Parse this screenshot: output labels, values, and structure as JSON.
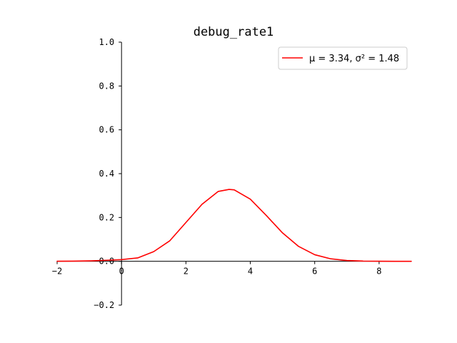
{
  "chart_data": {
    "type": "line",
    "title": "debug_rate1",
    "xlabel": "",
    "ylabel": "",
    "xlim": [
      -2,
      9
    ],
    "ylim": [
      -0.2,
      1.0
    ],
    "x_ticks": [
      -2,
      0,
      2,
      4,
      6,
      8
    ],
    "x_tick_labels": [
      "−2",
      "0",
      "2",
      "4",
      "6",
      "8"
    ],
    "y_ticks": [
      -0.2,
      0.0,
      0.2,
      0.4,
      0.6,
      0.8,
      1.0
    ],
    "y_tick_labels": [
      "−0.2",
      "0.0",
      "0.2",
      "0.4",
      "0.6",
      "0.8",
      "1.0"
    ],
    "grid": false,
    "legend_position": "top-right",
    "series": [
      {
        "name": "μ = 3.34, σ² = 1.48",
        "color": "#ff0000",
        "x": [
          -2.0,
          -1.5,
          -1.0,
          -0.5,
          0.0,
          0.5,
          1.0,
          1.5,
          2.0,
          2.5,
          3.0,
          3.34,
          3.5,
          4.0,
          4.5,
          5.0,
          5.5,
          6.0,
          6.5,
          7.0,
          7.5,
          8.0,
          8.5,
          9.0
        ],
        "y": [
          0.0002,
          0.0006,
          0.0018,
          0.0046,
          0.0078,
          0.0153,
          0.0441,
          0.0938,
          0.1771,
          0.2601,
          0.3186,
          0.328,
          0.3261,
          0.2836,
          0.2085,
          0.1296,
          0.0679,
          0.0301,
          0.0112,
          0.0036,
          0.001,
          0.0002,
          0.0,
          0.0
        ]
      }
    ]
  }
}
